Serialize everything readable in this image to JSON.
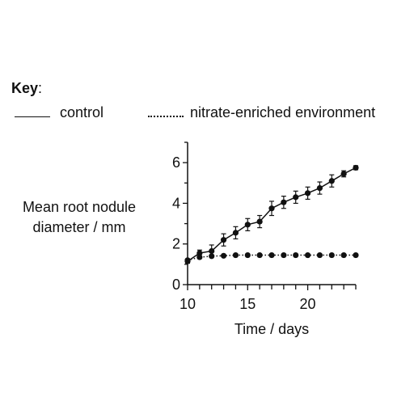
{
  "key": {
    "title": "Key",
    "suffix": ":"
  },
  "legend": [
    {
      "name": "control",
      "style": "solid"
    },
    {
      "name": "nitrate-enriched environment",
      "style": "dotted"
    }
  ],
  "chart_data": {
    "type": "line",
    "title": "",
    "xlabel": "Time / days",
    "ylabel": "Mean root nodule\ndiameter / mm",
    "xlim": [
      10,
      24
    ],
    "ylim": [
      0,
      7
    ],
    "x_ticks": [
      10,
      15,
      20
    ],
    "y_ticks": [
      0,
      2,
      4,
      6
    ],
    "x": [
      10,
      11,
      12,
      13,
      14,
      15,
      16,
      17,
      18,
      19,
      20,
      21,
      22,
      23,
      24
    ],
    "series": [
      {
        "name": "control",
        "style": "solid",
        "values": [
          1.15,
          1.55,
          1.65,
          2.2,
          2.55,
          2.95,
          3.1,
          3.75,
          4.05,
          4.3,
          4.5,
          4.75,
          5.1,
          5.45,
          5.75
        ],
        "error": [
          0.1,
          0.15,
          0.3,
          0.3,
          0.3,
          0.3,
          0.3,
          0.35,
          0.3,
          0.3,
          0.3,
          0.3,
          0.3,
          0.15,
          0.1
        ]
      },
      {
        "name": "nitrate-enriched environment",
        "style": "dotted",
        "values": [
          1.2,
          1.35,
          1.4,
          1.42,
          1.45,
          1.45,
          1.45,
          1.45,
          1.45,
          1.45,
          1.45,
          1.45,
          1.45,
          1.45,
          1.45
        ]
      }
    ],
    "grid": false,
    "legend_position": "top"
  }
}
